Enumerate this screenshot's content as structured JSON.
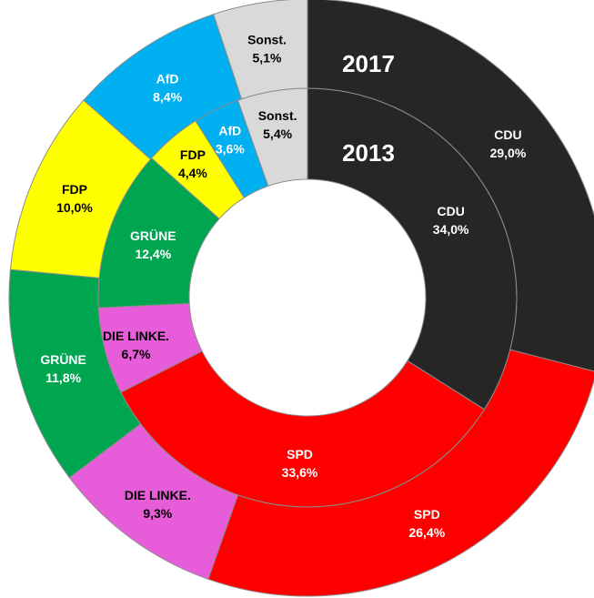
{
  "chart_data": {
    "type": "donut",
    "categories": [
      "CDU",
      "SPD",
      "DIE LINKE.",
      "GRÜNE",
      "FDP",
      "AfD",
      "Sonst."
    ],
    "colors": [
      "#262626",
      "#ff0000",
      "#e75cd9",
      "#00a550",
      "#ffff00",
      "#00b0f0",
      "#d9d9d9"
    ],
    "label_colors": [
      "#ffffff",
      "#ffffff",
      "#000000",
      "#ffffff",
      "#000000",
      "#ffffff",
      "#000000"
    ],
    "series": [
      {
        "name": "2013",
        "values": [
          34.0,
          33.6,
          6.7,
          12.4,
          4.4,
          3.6,
          5.4
        ],
        "value_labels": [
          "34,0%",
          "33,6%",
          "6,7%",
          "12,4%",
          "4,4%",
          "3,6%",
          "5,4%"
        ]
      },
      {
        "name": "2017",
        "values": [
          29.0,
          26.4,
          9.3,
          11.8,
          10.0,
          8.4,
          5.1
        ],
        "value_labels": [
          "29,0%",
          "26,4%",
          "9,3%",
          "11,8%",
          "10,0%",
          "8,4%",
          "5,1%"
        ]
      }
    ]
  }
}
